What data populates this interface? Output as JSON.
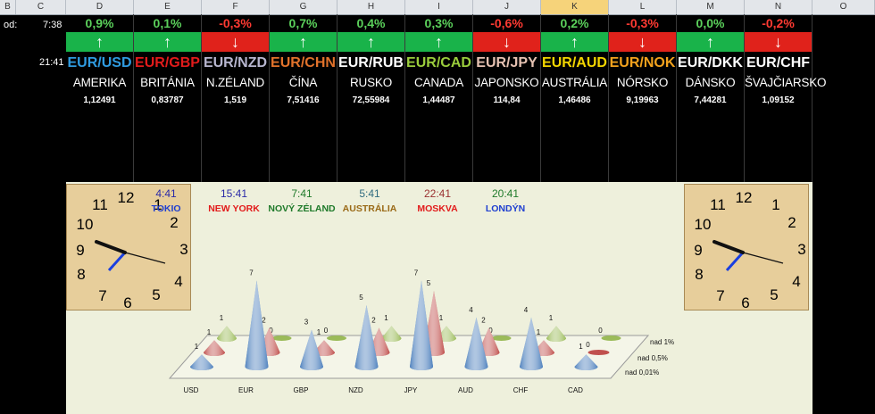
{
  "columns": [
    "B",
    "C",
    "D",
    "E",
    "F",
    "G",
    "H",
    "I",
    "J",
    "K",
    "L",
    "M",
    "N",
    "O"
  ],
  "selected_column": "K",
  "left": {
    "od_label": "od:",
    "time1": "7:38",
    "time2": "21:41"
  },
  "colors": {
    "up": "#19b34a",
    "down": "#e0221b",
    "pct_up": "#5bd05b",
    "pct_down": "#ff3a32"
  },
  "currencies": [
    {
      "pct": "0,9%",
      "dir": "up",
      "pair": "EUR/USD",
      "pair_color": "#2f9be0",
      "country": "AMERIKA",
      "rate": "1,12491"
    },
    {
      "pct": "0,1%",
      "dir": "up",
      "pair": "EUR/GBP",
      "pair_color": "#e21b1b",
      "country": "BRITÁNIA",
      "rate": "0,83787"
    },
    {
      "pct": "-0,3%",
      "dir": "down",
      "pair": "EUR/NZD",
      "pair_color": "#b7b6cf",
      "country": "N.ZÉLAND",
      "rate": "1,519"
    },
    {
      "pct": "0,7%",
      "dir": "up",
      "pair": "EUR/CHN",
      "pair_color": "#e1722b",
      "country": "ČÍNA",
      "rate": "7,51416"
    },
    {
      "pct": "0,4%",
      "dir": "up",
      "pair": "EUR/RUB",
      "pair_color": "#ffffff",
      "country": "RUSKO",
      "rate": "72,55984"
    },
    {
      "pct": "0,3%",
      "dir": "up",
      "pair": "EUR/CAD",
      "pair_color": "#9acd3c",
      "country": "CANADA",
      "rate": "1,44487"
    },
    {
      "pct": "-0,6%",
      "dir": "down",
      "pair": "EUR/JPY",
      "pair_color": "#e6c2b2",
      "country": "JAPONSKO",
      "rate": "114,84"
    },
    {
      "pct": "0,2%",
      "dir": "up",
      "pair": "EUR/AUD",
      "pair_color": "#f2d500",
      "country": "AUSTRÁLIA",
      "rate": "1,46486"
    },
    {
      "pct": "-0,3%",
      "dir": "down",
      "pair": "EUR/NOK",
      "pair_color": "#f2a21d",
      "country": "NÓRSKO",
      "rate": "9,19963"
    },
    {
      "pct": "0,0%",
      "dir": "up",
      "pair": "EUR/DKK",
      "pair_color": "#ffffff",
      "country": "DÁNSKO",
      "rate": "7,44281"
    },
    {
      "pct": "-0,2%",
      "dir": "down",
      "pair": "EUR/CHF",
      "pair_color": "#ffffff",
      "country": "ŠVAJČIARSKO",
      "rate": "1,09152"
    }
  ],
  "clock_numbers": [
    "12",
    "1",
    "2",
    "3",
    "4",
    "5",
    "6",
    "7",
    "8",
    "9",
    "10",
    "11"
  ],
  "timezones": [
    {
      "time": "4:41",
      "city": "TOKIO",
      "time_color": "#2a2aa8",
      "city_color": "#1f3fd0"
    },
    {
      "time": "15:41",
      "city": "NEW YORK",
      "time_color": "#2a2aa8",
      "city_color": "#e21b1b"
    },
    {
      "time": "7:41",
      "city": "NOVÝ ZÉLAND",
      "time_color": "#1f7a2a",
      "city_color": "#1f7a2a"
    },
    {
      "time": "5:41",
      "city": "AUSTRÁLIA",
      "time_color": "#2f6b7f",
      "city_color": "#9a6a17"
    },
    {
      "time": "22:41",
      "city": "MOSKVA",
      "time_color": "#9a3030",
      "city_color": "#e21b1b"
    },
    {
      "time": "20:41",
      "city": "LONDÝN",
      "time_color": "#1f7a2a",
      "city_color": "#1f3fd0"
    }
  ],
  "chart_data": {
    "type": "cone-3d-column",
    "categories": [
      "USD",
      "EUR",
      "GBP",
      "NZD",
      "JPY",
      "AUD",
      "CHF",
      "CAD"
    ],
    "series": [
      {
        "name": "nad 0,01%",
        "color": "#4f81bd",
        "values": [
          1,
          7,
          3,
          5,
          7,
          4,
          4,
          1
        ]
      },
      {
        "name": "nad 0,5%",
        "color": "#c0504d",
        "values": [
          1,
          2,
          1,
          2,
          5,
          2,
          1,
          0
        ]
      },
      {
        "name": "nad 1%",
        "color": "#9bbb59",
        "values": [
          1,
          0,
          0,
          1,
          1,
          0,
          1,
          0
        ]
      }
    ],
    "ylim": [
      0,
      7
    ]
  }
}
